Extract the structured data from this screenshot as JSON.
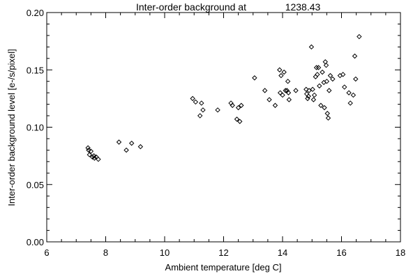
{
  "chart_data": {
    "type": "scatter",
    "title": "Inter-order background at",
    "title_value": "1238.43",
    "xlabel": "Ambient temperature [deg C]",
    "ylabel": "Inter-order background level [e-/s/pixel]",
    "xlim": [
      6,
      18
    ],
    "ylim": [
      0,
      0.2
    ],
    "xticks": [
      6,
      8,
      10,
      12,
      14,
      16,
      18
    ],
    "xtick_labels": [
      "6",
      "8",
      "10",
      "12",
      "14",
      "16",
      "18"
    ],
    "yticks": [
      0,
      0.05,
      0.1,
      0.15,
      0.2
    ],
    "ytick_labels": [
      "0.00",
      "0.05",
      "0.10",
      "0.15",
      "0.20"
    ],
    "marker": "diamond",
    "grid": false,
    "points": [
      [
        7.4,
        0.082
      ],
      [
        7.42,
        0.08
      ],
      [
        7.45,
        0.076
      ],
      [
        7.5,
        0.079
      ],
      [
        7.55,
        0.074
      ],
      [
        7.6,
        0.075
      ],
      [
        7.62,
        0.073
      ],
      [
        7.68,
        0.074
      ],
      [
        7.75,
        0.072
      ],
      [
        8.45,
        0.087
      ],
      [
        8.7,
        0.08
      ],
      [
        8.88,
        0.086
      ],
      [
        9.18,
        0.083
      ],
      [
        10.95,
        0.125
      ],
      [
        11.05,
        0.122
      ],
      [
        11.2,
        0.11
      ],
      [
        11.25,
        0.121
      ],
      [
        11.3,
        0.115
      ],
      [
        11.8,
        0.115
      ],
      [
        12.25,
        0.121
      ],
      [
        12.3,
        0.119
      ],
      [
        12.45,
        0.107
      ],
      [
        12.5,
        0.117
      ],
      [
        12.55,
        0.105
      ],
      [
        12.6,
        0.119
      ],
      [
        13.05,
        0.143
      ],
      [
        13.4,
        0.132
      ],
      [
        13.55,
        0.124
      ],
      [
        13.75,
        0.119
      ],
      [
        13.9,
        0.15
      ],
      [
        13.92,
        0.13
      ],
      [
        13.95,
        0.145
      ],
      [
        14.0,
        0.128
      ],
      [
        14.05,
        0.148
      ],
      [
        14.1,
        0.132
      ],
      [
        14.15,
        0.132
      ],
      [
        14.18,
        0.14
      ],
      [
        14.2,
        0.13
      ],
      [
        14.22,
        0.124
      ],
      [
        14.45,
        0.132
      ],
      [
        14.8,
        0.133
      ],
      [
        14.82,
        0.129
      ],
      [
        14.85,
        0.125
      ],
      [
        14.88,
        0.127
      ],
      [
        14.9,
        0.132
      ],
      [
        14.98,
        0.17
      ],
      [
        15.02,
        0.133
      ],
      [
        15.05,
        0.124
      ],
      [
        15.08,
        0.128
      ],
      [
        15.12,
        0.144
      ],
      [
        15.15,
        0.152
      ],
      [
        15.18,
        0.146
      ],
      [
        15.22,
        0.152
      ],
      [
        15.25,
        0.136
      ],
      [
        15.3,
        0.119
      ],
      [
        15.35,
        0.148
      ],
      [
        15.4,
        0.139
      ],
      [
        15.42,
        0.117
      ],
      [
        15.45,
        0.157
      ],
      [
        15.48,
        0.154
      ],
      [
        15.5,
        0.14
      ],
      [
        15.52,
        0.112
      ],
      [
        15.55,
        0.108
      ],
      [
        15.58,
        0.132
      ],
      [
        15.62,
        0.145
      ],
      [
        15.7,
        0.142
      ],
      [
        15.95,
        0.145
      ],
      [
        16.05,
        0.146
      ],
      [
        16.1,
        0.135
      ],
      [
        16.25,
        0.13
      ],
      [
        16.3,
        0.121
      ],
      [
        16.4,
        0.128
      ],
      [
        16.45,
        0.162
      ],
      [
        16.48,
        0.142
      ],
      [
        16.6,
        0.179
      ]
    ]
  }
}
